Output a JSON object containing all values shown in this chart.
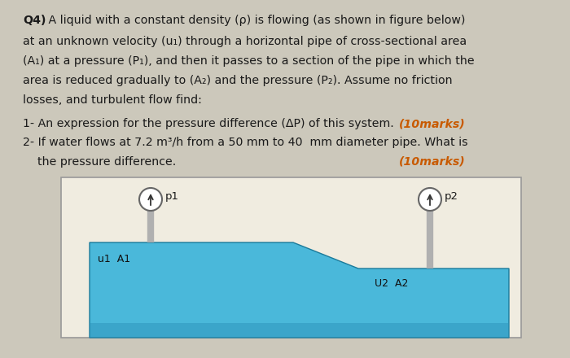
{
  "bg_color": "#ccc8bb",
  "text_color": "#1a1a1a",
  "marks_color": "#c85a00",
  "title_bold": "Q4)",
  "title_text": " A liquid with a constant density (ρ) is flowing (as shown in figure below)",
  "line2": "at an unknown velocity (u₁) through a horizontal pipe of cross-sectional area",
  "line3": "(A₁) at a pressure (P₁), and then it passes to a section of the pipe in which the",
  "line4": "area is reduced gradually to (A₂) and the pressure (P₂). Assume no friction",
  "line5": "losses, and turbulent flow find:",
  "item1_text": "1- An expression for the pressure difference (ΔP) of this system.",
  "item1_marks": "(10marks)",
  "item2_text": "2- If water flows at 7.2 m³/h from a 50 mm to 40  mm diameter pipe. What is",
  "item2b_text": "    the pressure difference.",
  "item2_marks": "(10marks)",
  "pipe_color": "#4ab8da",
  "pipe_color_dark": "#2a90b8",
  "gauge_color": "#b0b0b0",
  "box_bg": "#f0ece0",
  "box_edge": "#999999"
}
